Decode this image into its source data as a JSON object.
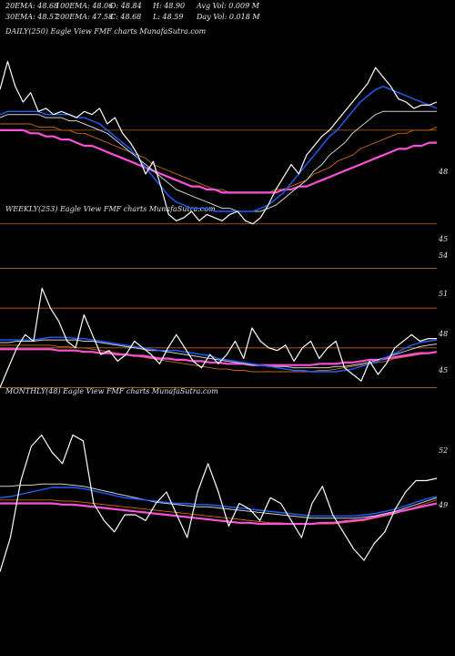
{
  "header": {
    "row1": [
      "20EMA: 48.68",
      "100EMA: 48.06",
      "O: 48.84",
      "H: 48.90",
      "Avg Vol: 0.009 M"
    ],
    "row2": [
      "30EMA: 48.57",
      "200EMA: 47.58",
      "C: 48.68",
      "L: 48.59",
      "Day Vol: 0.018  M"
    ]
  },
  "colors": {
    "background": "#000000",
    "price": "#ffffff",
    "ema_fast": "#1f5fff",
    "ema_slow": "#cfcfcf",
    "ema_long": "#c86a10",
    "ema_200": "#ff4fd8",
    "level_line": "#c0661a"
  },
  "chart_data": [
    {
      "type": "line",
      "title": "DAILY(250) Eagle   View  FMF charts MunafaSutra.com",
      "ylim": [
        44,
        51
      ],
      "y_ticks": [
        48,
        45
      ],
      "level_lines": [
        48,
        45
      ],
      "series": [
        {
          "role": "price",
          "values": [
            49.3,
            50.2,
            49.4,
            48.9,
            49.2,
            48.6,
            48.7,
            48.5,
            48.6,
            48.5,
            48.4,
            48.6,
            48.5,
            48.7,
            48.2,
            48.4,
            47.9,
            47.6,
            47.2,
            46.6,
            47.0,
            46.2,
            45.3,
            45.1,
            45.2,
            45.4,
            45.1,
            45.3,
            45.2,
            45.1,
            45.3,
            45.4,
            45.1,
            45.0,
            45.2,
            45.6,
            46.1,
            46.5,
            46.9,
            46.6,
            47.2,
            47.5,
            47.8,
            48.0,
            48.3,
            48.6,
            48.9,
            49.2,
            49.5,
            50.0,
            49.7,
            49.4,
            49.0,
            48.9,
            48.7,
            48.8,
            48.8,
            48.9
          ]
        },
        {
          "role": "ema_fast",
          "values": [
            48.5,
            48.6,
            48.6,
            48.6,
            48.6,
            48.6,
            48.5,
            48.5,
            48.5,
            48.5,
            48.4,
            48.4,
            48.3,
            48.2,
            48.0,
            47.8,
            47.6,
            47.4,
            47.1,
            46.8,
            46.5,
            46.2,
            45.9,
            45.7,
            45.6,
            45.5,
            45.5,
            45.5,
            45.4,
            45.4,
            45.4,
            45.4,
            45.4,
            45.4,
            45.5,
            45.6,
            45.8,
            46.0,
            46.3,
            46.6,
            46.9,
            47.2,
            47.5,
            47.8,
            48.0,
            48.3,
            48.6,
            48.9,
            49.1,
            49.3,
            49.4,
            49.3,
            49.2,
            49.1,
            49.0,
            48.9,
            48.8,
            48.7
          ]
        },
        {
          "role": "ema_slow",
          "values": [
            48.4,
            48.5,
            48.5,
            48.5,
            48.5,
            48.5,
            48.4,
            48.4,
            48.4,
            48.3,
            48.3,
            48.2,
            48.1,
            48.0,
            47.9,
            47.7,
            47.5,
            47.3,
            47.1,
            46.9,
            46.7,
            46.5,
            46.3,
            46.1,
            46.0,
            45.9,
            45.8,
            45.7,
            45.6,
            45.5,
            45.5,
            45.4,
            45.4,
            45.4,
            45.4,
            45.5,
            45.6,
            45.8,
            46.0,
            46.2,
            46.4,
            46.7,
            46.9,
            47.2,
            47.4,
            47.6,
            47.9,
            48.1,
            48.3,
            48.5,
            48.6,
            48.6,
            48.6,
            48.6,
            48.6,
            48.6,
            48.6,
            48.6
          ]
        },
        {
          "role": "ema_long",
          "values": [
            48.2,
            48.2,
            48.2,
            48.2,
            48.2,
            48.1,
            48.1,
            48.1,
            48.0,
            48.0,
            47.9,
            47.9,
            47.8,
            47.7,
            47.6,
            47.5,
            47.4,
            47.3,
            47.2,
            47.1,
            46.9,
            46.8,
            46.7,
            46.6,
            46.5,
            46.4,
            46.3,
            46.2,
            46.1,
            46.1,
            46.0,
            46.0,
            46.0,
            46.0,
            46.0,
            46.0,
            46.1,
            46.1,
            46.2,
            46.3,
            46.4,
            46.6,
            46.7,
            46.8,
            47.0,
            47.1,
            47.2,
            47.4,
            47.5,
            47.6,
            47.7,
            47.8,
            47.9,
            47.9,
            48.0,
            48.0,
            48.0,
            48.1
          ]
        },
        {
          "role": "ema_200",
          "values": [
            48.0,
            48.0,
            48.0,
            48.0,
            47.9,
            47.9,
            47.8,
            47.8,
            47.7,
            47.7,
            47.6,
            47.5,
            47.5,
            47.4,
            47.3,
            47.2,
            47.1,
            47.0,
            46.9,
            46.8,
            46.7,
            46.6,
            46.5,
            46.4,
            46.3,
            46.2,
            46.2,
            46.1,
            46.1,
            46.0,
            46.0,
            46.0,
            46.0,
            46.0,
            46.0,
            46.0,
            46.0,
            46.1,
            46.1,
            46.2,
            46.2,
            46.3,
            46.4,
            46.5,
            46.6,
            46.7,
            46.8,
            46.9,
            47.0,
            47.1,
            47.2,
            47.3,
            47.4,
            47.4,
            47.5,
            47.5,
            47.6,
            47.6
          ]
        }
      ]
    },
    {
      "type": "line",
      "title": "WEEKLY(253) Eagle   View  FMF charts MunafaSutra.com",
      "ylim": [
        44,
        55
      ],
      "y_ticks": [
        54,
        51,
        48,
        45
      ],
      "level_lines": [
        54,
        51,
        48,
        45
      ],
      "series": [
        {
          "role": "price",
          "values": [
            45.0,
            46.5,
            48.0,
            49.0,
            48.5,
            52.5,
            51.0,
            50.0,
            48.5,
            48.0,
            50.5,
            49.0,
            47.5,
            47.8,
            47.0,
            47.5,
            48.5,
            48.0,
            47.5,
            46.8,
            48.0,
            49.0,
            48.0,
            47.0,
            46.5,
            47.5,
            46.8,
            47.5,
            48.5,
            47.2,
            49.5,
            48.5,
            48.0,
            47.8,
            48.2,
            47.0,
            48.0,
            48.5,
            47.2,
            48.0,
            48.5,
            46.5,
            46.0,
            45.5,
            47.0,
            46.0,
            46.8,
            48.0,
            48.5,
            49.0,
            48.5,
            48.7,
            48.7
          ]
        },
        {
          "role": "ema_fast",
          "values": [
            48.6,
            48.6,
            48.6,
            48.6,
            48.6,
            48.7,
            48.8,
            48.8,
            48.8,
            48.7,
            48.7,
            48.6,
            48.5,
            48.4,
            48.3,
            48.2,
            48.1,
            48.0,
            47.9,
            47.8,
            47.8,
            47.8,
            47.7,
            47.6,
            47.5,
            47.4,
            47.2,
            47.1,
            47.0,
            46.9,
            46.8,
            46.7,
            46.6,
            46.5,
            46.4,
            46.3,
            46.3,
            46.2,
            46.2,
            46.2,
            46.2,
            46.3,
            46.4,
            46.6,
            46.8,
            47.0,
            47.3,
            47.6,
            47.9,
            48.2,
            48.4,
            48.5,
            48.6
          ]
        },
        {
          "role": "ema_slow",
          "values": [
            48.4,
            48.4,
            48.5,
            48.5,
            48.5,
            48.6,
            48.6,
            48.6,
            48.6,
            48.6,
            48.5,
            48.5,
            48.4,
            48.3,
            48.2,
            48.1,
            48.0,
            47.9,
            47.8,
            47.8,
            47.7,
            47.6,
            47.5,
            47.4,
            47.3,
            47.2,
            47.1,
            47.0,
            46.9,
            46.8,
            46.7,
            46.7,
            46.6,
            46.6,
            46.6,
            46.5,
            46.5,
            46.5,
            46.5,
            46.5,
            46.6,
            46.6,
            46.7,
            46.8,
            46.9,
            47.1,
            47.3,
            47.5,
            47.7,
            47.9,
            48.1,
            48.2,
            48.3
          ]
        },
        {
          "role": "ema_long",
          "values": [
            48.2,
            48.2,
            48.2,
            48.2,
            48.2,
            48.2,
            48.2,
            48.1,
            48.1,
            48.0,
            48.0,
            47.9,
            47.8,
            47.7,
            47.6,
            47.5,
            47.4,
            47.3,
            47.2,
            47.1,
            47.0,
            46.9,
            46.8,
            46.7,
            46.6,
            46.5,
            46.4,
            46.4,
            46.3,
            46.3,
            46.2,
            46.2,
            46.2,
            46.2,
            46.2,
            46.2,
            46.2,
            46.2,
            46.3,
            46.3,
            46.4,
            46.5,
            46.6,
            46.7,
            46.8,
            46.9,
            47.0,
            47.2,
            47.3,
            47.4,
            47.5,
            47.6,
            47.7
          ]
        },
        {
          "role": "ema_200",
          "values": [
            47.9,
            47.9,
            47.9,
            47.9,
            47.9,
            47.9,
            47.9,
            47.8,
            47.8,
            47.8,
            47.7,
            47.7,
            47.6,
            47.6,
            47.5,
            47.5,
            47.4,
            47.4,
            47.3,
            47.2,
            47.2,
            47.1,
            47.1,
            47.0,
            47.0,
            46.9,
            46.9,
            46.8,
            46.8,
            46.8,
            46.7,
            46.7,
            46.7,
            46.7,
            46.7,
            46.7,
            46.7,
            46.7,
            46.8,
            46.8,
            46.8,
            46.9,
            46.9,
            47.0,
            47.1,
            47.1,
            47.2,
            47.3,
            47.4,
            47.5,
            47.6,
            47.6,
            47.7
          ]
        }
      ]
    },
    {
      "type": "line",
      "title": "MONTHLY(48) Eagle   View  FMF charts MunafaSutra.com",
      "ylim": [
        40,
        56
      ],
      "y_ticks": [
        52,
        49
      ],
      "level_lines": [],
      "series": [
        {
          "role": "price",
          "values": [
            41.0,
            44.0,
            49.0,
            52.0,
            53.0,
            51.5,
            50.5,
            53.0,
            52.5,
            47.0,
            45.5,
            44.5,
            46.0,
            46.0,
            45.5,
            47.0,
            48.0,
            46.0,
            44.0,
            48.0,
            50.5,
            48.0,
            45.0,
            47.0,
            46.5,
            45.5,
            47.5,
            47.0,
            45.5,
            44.0,
            47.0,
            48.5,
            46.0,
            44.5,
            43.0,
            42.0,
            43.5,
            44.5,
            46.5,
            48.0,
            49.0,
            49.0,
            49.2
          ]
        },
        {
          "role": "ema_fast",
          "values": [
            47.5,
            47.6,
            47.8,
            48.0,
            48.2,
            48.4,
            48.4,
            48.4,
            48.3,
            48.1,
            47.9,
            47.7,
            47.5,
            47.4,
            47.3,
            47.2,
            47.1,
            47.0,
            47.0,
            46.9,
            46.9,
            46.8,
            46.7,
            46.6,
            46.5,
            46.4,
            46.3,
            46.2,
            46.1,
            46.0,
            45.9,
            45.9,
            45.9,
            45.9,
            45.9,
            46.0,
            46.1,
            46.3,
            46.5,
            46.8,
            47.1,
            47.4,
            47.6
          ]
        },
        {
          "role": "ema_slow",
          "values": [
            48.5,
            48.5,
            48.6,
            48.6,
            48.7,
            48.7,
            48.7,
            48.6,
            48.5,
            48.3,
            48.1,
            47.9,
            47.7,
            47.5,
            47.3,
            47.1,
            47.0,
            46.9,
            46.8,
            46.7,
            46.7,
            46.6,
            46.5,
            46.4,
            46.3,
            46.2,
            46.1,
            46.0,
            45.9,
            45.8,
            45.7,
            45.7,
            45.7,
            45.7,
            45.7,
            45.8,
            45.9,
            46.1,
            46.3,
            46.6,
            46.9,
            47.2,
            47.5
          ]
        },
        {
          "role": "ema_long",
          "values": [
            47.3,
            47.3,
            47.3,
            47.3,
            47.3,
            47.3,
            47.2,
            47.2,
            47.1,
            47.0,
            46.9,
            46.8,
            46.7,
            46.6,
            46.5,
            46.4,
            46.3,
            46.2,
            46.1,
            46.0,
            45.9,
            45.8,
            45.7,
            45.6,
            45.5,
            45.4,
            45.3,
            45.3,
            45.2,
            45.2,
            45.2,
            45.2,
            45.2,
            45.3,
            45.4,
            45.5,
            45.7,
            45.9,
            46.1,
            46.4,
            46.7,
            47.0,
            47.3
          ]
        },
        {
          "role": "ema_200",
          "values": [
            47.0,
            47.0,
            47.0,
            47.0,
            47.0,
            47.0,
            46.9,
            46.9,
            46.8,
            46.7,
            46.6,
            46.5,
            46.4,
            46.3,
            46.2,
            46.1,
            46.0,
            45.9,
            45.8,
            45.7,
            45.6,
            45.5,
            45.4,
            45.3,
            45.3,
            45.2,
            45.2,
            45.2,
            45.2,
            45.2,
            45.2,
            45.3,
            45.3,
            45.4,
            45.5,
            45.6,
            45.8,
            46.0,
            46.2,
            46.4,
            46.6,
            46.8,
            47.0
          ]
        }
      ]
    }
  ]
}
